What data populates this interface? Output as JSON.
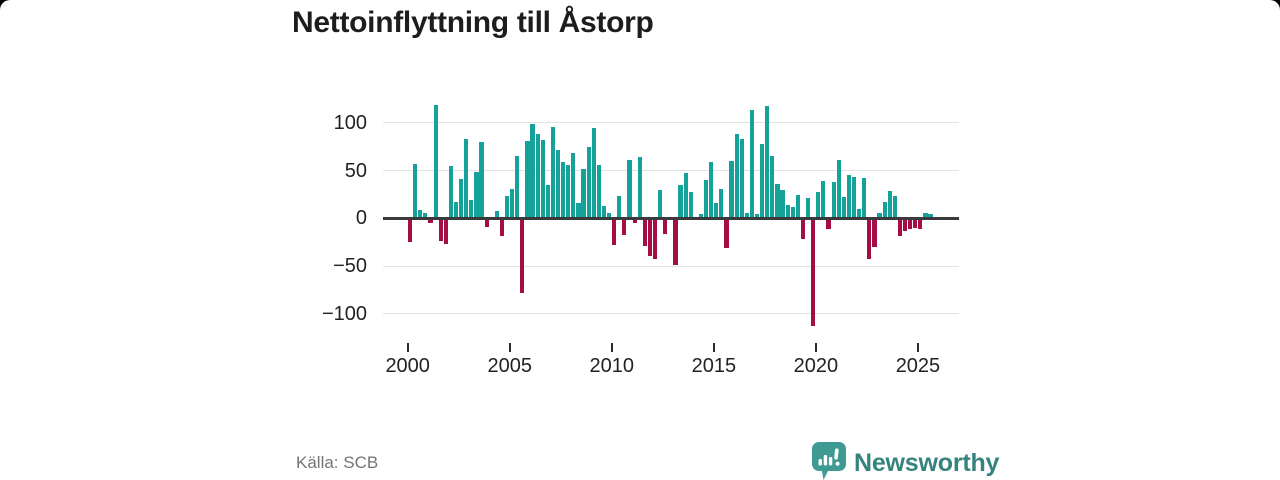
{
  "title": "Nettoinflyttning till Åstorp",
  "source_label": "Källa: SCB",
  "brand": {
    "name": "Newsworthy"
  },
  "colors": {
    "positive": "#14A29A",
    "negative": "#A50D45",
    "grid": "#E1E1E1",
    "zero_line": "#3A3A3A",
    "text": "#222222",
    "title_text": "#1D1D1D",
    "muted_text": "#757575",
    "brand_icon": "#3F9A94",
    "brand_text": "#35837E"
  },
  "chart_data": {
    "type": "bar",
    "title": "Nettoinflyttning till Åstorp",
    "xlabel": "",
    "ylabel": "",
    "grid": true,
    "legend": false,
    "x_unit": "quarter",
    "period_start": "2000 Q1",
    "period_end": "2025 Q3",
    "y_axis": {
      "tick_values": [
        100,
        50,
        0,
        -50,
        -100
      ],
      "tick_labels": [
        "100",
        "50",
        "0",
        "−50",
        "−100"
      ],
      "ylim": [
        -127,
        129
      ]
    },
    "x_axis": {
      "tick_years": [
        2000,
        2005,
        2010,
        2015,
        2020,
        2025
      ],
      "tick_labels": [
        "2000",
        "2005",
        "2010",
        "2015",
        "2020",
        "2025"
      ]
    },
    "categories": [
      "2000 Q1",
      "2000 Q2",
      "2000 Q3",
      "2000 Q4",
      "2001 Q1",
      "2001 Q2",
      "2001 Q3",
      "2001 Q4",
      "2002 Q1",
      "2002 Q2",
      "2002 Q3",
      "2002 Q4",
      "2003 Q1",
      "2003 Q2",
      "2003 Q3",
      "2003 Q4",
      "2004 Q1",
      "2004 Q2",
      "2004 Q3",
      "2004 Q4",
      "2005 Q1",
      "2005 Q2",
      "2005 Q3",
      "2005 Q4",
      "2006 Q1",
      "2006 Q2",
      "2006 Q3",
      "2006 Q4",
      "2007 Q1",
      "2007 Q2",
      "2007 Q3",
      "2007 Q4",
      "2008 Q1",
      "2008 Q2",
      "2008 Q3",
      "2008 Q4",
      "2009 Q1",
      "2009 Q2",
      "2009 Q3",
      "2009 Q4",
      "2010 Q1",
      "2010 Q2",
      "2010 Q3",
      "2010 Q4",
      "2011 Q1",
      "2011 Q2",
      "2011 Q3",
      "2011 Q4",
      "2012 Q1",
      "2012 Q2",
      "2012 Q3",
      "2012 Q4",
      "2013 Q1",
      "2013 Q2",
      "2013 Q3",
      "2013 Q4",
      "2014 Q1",
      "2014 Q2",
      "2014 Q3",
      "2014 Q4",
      "2015 Q1",
      "2015 Q2",
      "2015 Q3",
      "2015 Q4",
      "2016 Q1",
      "2016 Q2",
      "2016 Q3",
      "2016 Q4",
      "2017 Q1",
      "2017 Q2",
      "2017 Q3",
      "2017 Q4",
      "2018 Q1",
      "2018 Q2",
      "2018 Q3",
      "2018 Q4",
      "2019 Q1",
      "2019 Q2",
      "2019 Q3",
      "2019 Q4",
      "2020 Q1",
      "2020 Q2",
      "2020 Q3",
      "2020 Q4",
      "2021 Q1",
      "2021 Q2",
      "2021 Q3",
      "2021 Q4",
      "2022 Q1",
      "2022 Q2",
      "2022 Q3",
      "2022 Q4",
      "2023 Q1",
      "2023 Q2",
      "2023 Q3",
      "2023 Q4",
      "2024 Q1",
      "2024 Q2",
      "2024 Q3",
      "2024 Q4",
      "2025 Q1",
      "2025 Q2",
      "2025 Q3"
    ],
    "values": [
      -25,
      57,
      9,
      6,
      -5,
      118,
      -24,
      -27,
      55,
      17,
      41,
      83,
      19,
      48,
      80,
      -9,
      0,
      8,
      -18,
      23,
      31,
      65,
      -78,
      81,
      99,
      88,
      82,
      35,
      96,
      71,
      59,
      56,
      68,
      16,
      52,
      75,
      94,
      56,
      13,
      6,
      -28,
      23,
      -17,
      61,
      -5,
      64,
      -29,
      -39,
      -43,
      30,
      -16,
      -2,
      -49,
      35,
      47,
      27,
      0,
      5,
      40,
      59,
      16,
      31,
      -31,
      60,
      88,
      83,
      6,
      113,
      4,
      78,
      117,
      65,
      36,
      30,
      14,
      12,
      24,
      -22,
      21,
      -113,
      27,
      39,
      -11,
      38,
      61,
      22,
      45,
      43,
      10,
      42,
      -43,
      -30,
      6,
      17,
      29,
      23,
      -18,
      -13,
      -11,
      -10,
      -11,
      6,
      4
    ]
  }
}
